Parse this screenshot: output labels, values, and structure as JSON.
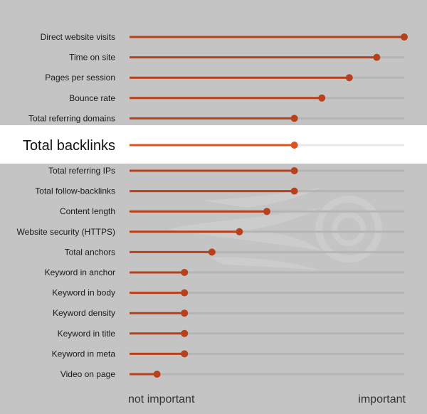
{
  "chart_data": {
    "type": "scatter",
    "title": "",
    "xlabel": "",
    "ylabel": "",
    "xlim": [
      0,
      1
    ],
    "highlighted": "Total backlinks",
    "axis_labels": {
      "left": "not important",
      "right": "important"
    },
    "categories": [
      "Direct website visits",
      "Time on site",
      "Pages per session",
      "Bounce rate",
      "Total referring domains",
      "Total backlinks",
      "Total referring IPs",
      "Total follow-backlinks",
      "Content length",
      "Website security (HTTPS)",
      "Total anchors",
      "Keyword in anchor",
      "Keyword in body",
      "Keyword density",
      "Keyword in title",
      "Keyword in meta",
      "Video on page"
    ],
    "values": [
      1.0,
      0.9,
      0.8,
      0.7,
      0.6,
      0.6,
      0.6,
      0.6,
      0.5,
      0.4,
      0.3,
      0.2,
      0.2,
      0.2,
      0.2,
      0.2,
      0.1
    ]
  },
  "colors": {
    "accent": "#b8401b",
    "accent_highlight": "#e2501d",
    "track": "#b5b5b5",
    "track_highlight": "#e8e8e8",
    "panel": "#c4c4c4"
  }
}
